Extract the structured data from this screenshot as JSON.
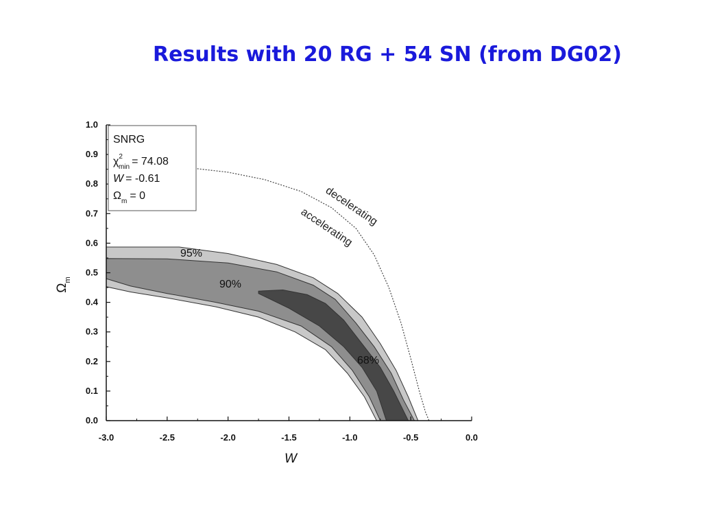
{
  "slide": {
    "title": "Results with 20 RG + 54 SN (from DG02)"
  },
  "colors": {
    "title": "#1a1adb",
    "contour_95": "#c8c8c8",
    "contour_90": "#8e8e8e",
    "contour_68": "#474747",
    "boundary": "#333333"
  },
  "chart_data": {
    "type": "area",
    "title": "",
    "xlabel": "W",
    "ylabel": "Ωm",
    "xlim": [
      -3.0,
      0.0
    ],
    "ylim": [
      0.0,
      1.0
    ],
    "x_ticks": [
      "-3.0",
      "-2.5",
      "-2.0",
      "-1.5",
      "-1.0",
      "-0.5",
      "0.0"
    ],
    "y_ticks": [
      "0.0",
      "0.1",
      "0.2",
      "0.3",
      "0.4",
      "0.5",
      "0.6",
      "0.7",
      "0.8",
      "0.9",
      "1.0"
    ],
    "grid": false,
    "legend": {
      "placement": "top-left",
      "lines": {
        "name": "SNRG",
        "chi_symbol": "χ",
        "chi_sup": "2",
        "chi_sub": "min",
        "chi_value": "= 74.08",
        "w_symbol": "W",
        "w_value": "= -0.61",
        "omega_symbol": "Ω",
        "omega_sub": "m",
        "omega_value": "= 0"
      }
    },
    "series": [
      {
        "name": "95%",
        "polygon": [
          [
            -3.0,
            0.587
          ],
          [
            -2.4,
            0.587
          ],
          [
            -2.0,
            0.565
          ],
          [
            -1.6,
            0.528
          ],
          [
            -1.3,
            0.483
          ],
          [
            -1.1,
            0.43
          ],
          [
            -0.9,
            0.35
          ],
          [
            -0.75,
            0.26
          ],
          [
            -0.62,
            0.17
          ],
          [
            -0.52,
            0.08
          ],
          [
            -0.44,
            0.0
          ],
          [
            -0.78,
            0.0
          ],
          [
            -0.88,
            0.08
          ],
          [
            -1.02,
            0.16
          ],
          [
            -1.2,
            0.24
          ],
          [
            -1.45,
            0.3
          ],
          [
            -1.75,
            0.35
          ],
          [
            -2.1,
            0.385
          ],
          [
            -2.5,
            0.415
          ],
          [
            -2.8,
            0.435
          ],
          [
            -3.0,
            0.453
          ]
        ]
      },
      {
        "name": "90%",
        "polygon": [
          [
            -3.0,
            0.548
          ],
          [
            -2.5,
            0.547
          ],
          [
            -2.0,
            0.533
          ],
          [
            -1.6,
            0.503
          ],
          [
            -1.3,
            0.458
          ],
          [
            -1.12,
            0.41
          ],
          [
            -0.95,
            0.33
          ],
          [
            -0.8,
            0.25
          ],
          [
            -0.66,
            0.16
          ],
          [
            -0.56,
            0.07
          ],
          [
            -0.47,
            0.0
          ],
          [
            -0.75,
            0.0
          ],
          [
            -0.84,
            0.08
          ],
          [
            -0.98,
            0.17
          ],
          [
            -1.15,
            0.25
          ],
          [
            -1.4,
            0.32
          ],
          [
            -1.75,
            0.37
          ],
          [
            -2.1,
            0.4
          ],
          [
            -2.5,
            0.43
          ],
          [
            -2.8,
            0.455
          ],
          [
            -3.0,
            0.48
          ]
        ]
      },
      {
        "name": "68%",
        "polygon": [
          [
            -1.75,
            0.438
          ],
          [
            -1.55,
            0.442
          ],
          [
            -1.35,
            0.426
          ],
          [
            -1.2,
            0.396
          ],
          [
            -1.05,
            0.34
          ],
          [
            -0.9,
            0.26
          ],
          [
            -0.75,
            0.18
          ],
          [
            -0.64,
            0.1
          ],
          [
            -0.52,
            0.0
          ],
          [
            -0.7,
            0.0
          ],
          [
            -0.78,
            0.1
          ],
          [
            -0.9,
            0.18
          ],
          [
            -1.05,
            0.25
          ],
          [
            -1.25,
            0.32
          ],
          [
            -1.5,
            0.38
          ],
          [
            -1.75,
            0.43
          ]
        ]
      }
    ],
    "region_labels": [
      "95%",
      "90%",
      "68%"
    ],
    "boundary_curve": {
      "style": "dotted",
      "points": [
        [
          -2.32,
          0.855
        ],
        [
          -2.0,
          0.84
        ],
        [
          -1.7,
          0.815
        ],
        [
          -1.4,
          0.775
        ],
        [
          -1.15,
          0.72
        ],
        [
          -0.95,
          0.65
        ],
        [
          -0.8,
          0.56
        ],
        [
          -0.68,
          0.45
        ],
        [
          -0.58,
          0.33
        ],
        [
          -0.5,
          0.21
        ],
        [
          -0.43,
          0.1
        ],
        [
          -0.38,
          0.03
        ],
        [
          -0.35,
          0.0
        ]
      ],
      "labels": [
        "decelerating",
        "accelerating"
      ]
    }
  }
}
